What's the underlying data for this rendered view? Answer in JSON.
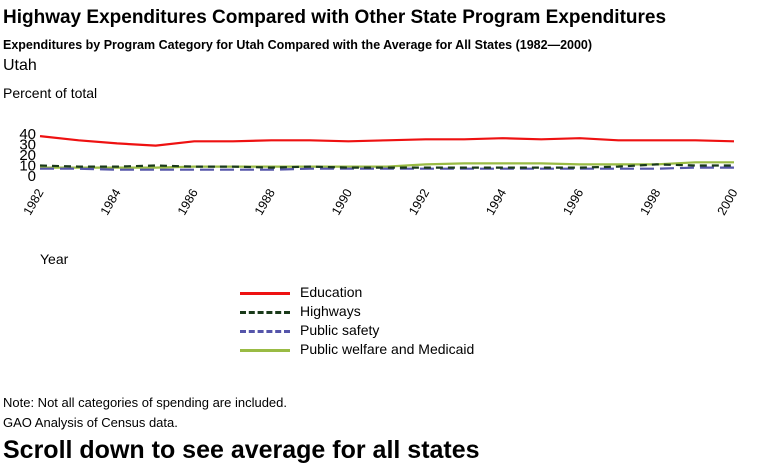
{
  "chart_data": {
    "type": "line",
    "title": "Highway Expenditures Compared with Other State Program Expenditures",
    "subtitle": "Expenditures by Program Category for Utah Compared with the Average for All States (1982—2000)",
    "panel_title": "Utah",
    "ylabel": "Percent of total",
    "xlabel": "Year",
    "x": [
      1982,
      1983,
      1984,
      1985,
      1986,
      1987,
      1988,
      1989,
      1990,
      1991,
      1992,
      1993,
      1994,
      1995,
      1996,
      1997,
      1998,
      1999,
      2000
    ],
    "x_ticks": [
      1982,
      1984,
      1986,
      1988,
      1990,
      1992,
      1994,
      1996,
      1998,
      2000
    ],
    "y_ticks": [
      0,
      10,
      20,
      30,
      40
    ],
    "ylim": [
      0,
      40
    ],
    "xlim": [
      1982,
      2000
    ],
    "grid": false,
    "legend_position": "bottom",
    "series": [
      {
        "name": "Education",
        "color": "#ee1111",
        "dash": "solid",
        "values": [
          38,
          34,
          31,
          29,
          33,
          33,
          34,
          34,
          33,
          34,
          35,
          35,
          36,
          35,
          36,
          34,
          34,
          34,
          33
        ]
      },
      {
        "name": "Highways",
        "color": "#1a3a1a",
        "dash": "dashed",
        "values": [
          10,
          9,
          9,
          10,
          9,
          9,
          8,
          9,
          8,
          8,
          8,
          8,
          8,
          8,
          8,
          9,
          11,
          10,
          10
        ]
      },
      {
        "name": "Public safety",
        "color": "#5555aa",
        "dash": "longdash",
        "values": [
          7,
          7,
          6,
          6,
          6,
          6,
          6,
          7,
          7,
          7,
          7,
          7,
          7,
          7,
          7,
          7,
          7,
          8,
          8
        ]
      },
      {
        "name": "Public welfare and Medicaid",
        "color": "#99bb44",
        "dash": "solid",
        "values": [
          8,
          8,
          8,
          8,
          9,
          9,
          9,
          9,
          9,
          9,
          11,
          12,
          12,
          12,
          11,
          11,
          11,
          13,
          13
        ]
      }
    ]
  },
  "note": "Note: Not all categories of spending are included.",
  "source": "GAO Analysis of Census data.",
  "scroll_hint": "Scroll down to see average for all states"
}
